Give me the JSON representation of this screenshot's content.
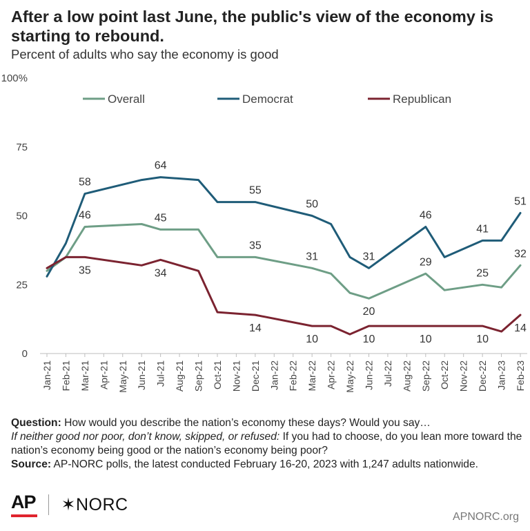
{
  "header": {
    "title": "After a low point last June, the public's view of the economy is starting to rebound.",
    "subtitle": "Percent of adults who say the economy is good"
  },
  "chart_data": {
    "type": "line",
    "title": "After a low point last June, the public's view of the economy is starting to rebound.",
    "subtitle": "Percent of adults who say the economy is good",
    "xlabel": "",
    "ylabel": "",
    "ylim": [
      0,
      100
    ],
    "yticks": [
      0,
      25,
      50,
      75,
      100
    ],
    "ytick_labels": [
      "0",
      "25",
      "50",
      "75",
      "100%"
    ],
    "grid": false,
    "legend_position": "top",
    "categories": [
      "Jan-21",
      "Feb-21",
      "Mar-21",
      "Apr-21",
      "May-21",
      "Jun-21",
      "Jul-21",
      "Aug-21",
      "Sep-21",
      "Oct-21",
      "Nov-21",
      "Dec-21",
      "Jan-22",
      "Feb-22",
      "Mar-22",
      "Apr-22",
      "May-22",
      "Jun-22",
      "Jul-22",
      "Aug-22",
      "Sep-22",
      "Oct-22",
      "Nov-22",
      "Dec-22",
      "Jan-23",
      "Feb-23"
    ],
    "series": [
      {
        "name": "Overall",
        "color": "#6e9e86",
        "x": [
          0,
          1,
          2,
          5,
          6,
          8,
          9,
          11,
          14,
          15,
          16,
          17,
          20,
          21,
          23,
          24,
          25
        ],
        "values": [
          30,
          35,
          46,
          47,
          45,
          45,
          35,
          35,
          31,
          29,
          22,
          20,
          29,
          23,
          25,
          24,
          32
        ],
        "labels": [
          {
            "i": 2,
            "text": "46",
            "pos": "above"
          },
          {
            "i": 4,
            "text": "45",
            "pos": "above"
          },
          {
            "i": 7,
            "text": "35",
            "pos": "above"
          },
          {
            "i": 8,
            "text": "31",
            "pos": "above"
          },
          {
            "i": 11,
            "text": "20",
            "pos": "below"
          },
          {
            "i": 12,
            "text": "29",
            "pos": "above"
          },
          {
            "i": 14,
            "text": "25",
            "pos": "above"
          },
          {
            "i": 16,
            "text": "32",
            "pos": "above"
          }
        ]
      },
      {
        "name": "Democrat",
        "color": "#1f5c78",
        "x": [
          0,
          1,
          2,
          5,
          6,
          8,
          9,
          11,
          14,
          15,
          16,
          17,
          20,
          21,
          23,
          24,
          25
        ],
        "values": [
          28,
          40,
          58,
          63,
          64,
          63,
          55,
          55,
          50,
          47,
          35,
          31,
          46,
          35,
          41,
          41,
          51
        ],
        "labels": [
          {
            "i": 2,
            "text": "58",
            "pos": "above"
          },
          {
            "i": 4,
            "text": "64",
            "pos": "above"
          },
          {
            "i": 7,
            "text": "55",
            "pos": "above"
          },
          {
            "i": 8,
            "text": "50",
            "pos": "above"
          },
          {
            "i": 11,
            "text": "31",
            "pos": "above"
          },
          {
            "i": 12,
            "text": "46",
            "pos": "above"
          },
          {
            "i": 14,
            "text": "41",
            "pos": "above"
          },
          {
            "i": 16,
            "text": "51",
            "pos": "above"
          }
        ]
      },
      {
        "name": "Republican",
        "color": "#7b2330",
        "x": [
          0,
          1,
          2,
          5,
          6,
          8,
          9,
          11,
          14,
          15,
          16,
          17,
          20,
          21,
          23,
          24,
          25
        ],
        "values": [
          31,
          35,
          35,
          32,
          34,
          30,
          15,
          14,
          10,
          10,
          7,
          10,
          10,
          10,
          10,
          8,
          14
        ],
        "labels": [
          {
            "i": 2,
            "text": "35",
            "pos": "below"
          },
          {
            "i": 4,
            "text": "34",
            "pos": "below"
          },
          {
            "i": 7,
            "text": "14",
            "pos": "below"
          },
          {
            "i": 8,
            "text": "10",
            "pos": "below"
          },
          {
            "i": 11,
            "text": "10",
            "pos": "below"
          },
          {
            "i": 12,
            "text": "10",
            "pos": "below"
          },
          {
            "i": 14,
            "text": "10",
            "pos": "below"
          },
          {
            "i": 16,
            "text": "14",
            "pos": "below"
          }
        ]
      }
    ]
  },
  "notes": {
    "question_label": "Question:",
    "question_text": " How would you describe the nation’s economy these days? Would you say…",
    "followup_label": "If neither good nor poor, don’t know, skipped, or refused:",
    "followup_text": " If you had to choose, do you lean more toward the nation’s economy being good or the nation’s economy being poor?",
    "source_label": "Source:",
    "source_text": " AP-NORC polls, the latest conducted February 16-20, 2023 with 1,247 adults nationwide."
  },
  "footer": {
    "ap_logo": "AP",
    "norc_logo": "✶NORC",
    "url": "APNORC.org"
  },
  "colors": {
    "overall": "#6e9e86",
    "democrat": "#1f5c78",
    "republican": "#7b2330",
    "ap_red": "#e0242d"
  }
}
